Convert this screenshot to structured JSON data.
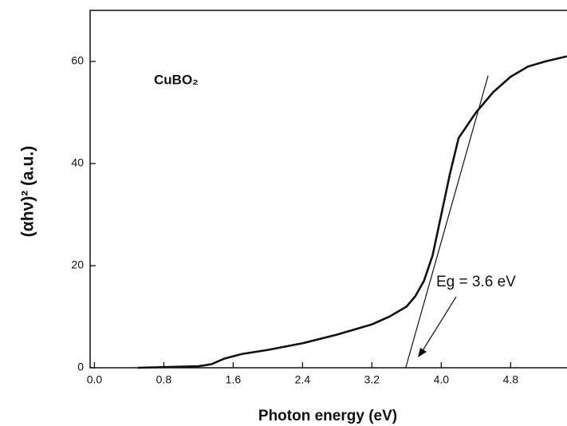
{
  "chart_data": {
    "type": "line",
    "x_label": "Photon energy (eV)",
    "y_label": "(αhν)² (a.u.)",
    "annotations": [
      "CuBO₂",
      "Eg = 3.6 eV"
    ],
    "xlim": [
      -0.05,
      5.45
    ],
    "ylim": [
      0,
      70
    ],
    "xticks": [
      {
        "value": 0,
        "label": "0.0"
      },
      {
        "value": 0.8,
        "label": "0.8"
      },
      {
        "value": 1.6,
        "label": "1.6"
      },
      {
        "value": 2.4,
        "label": "2.4"
      },
      {
        "value": 3.2,
        "label": "3.2"
      },
      {
        "value": 4,
        "label": "4.0"
      },
      {
        "value": 4.8,
        "label": "4.8"
      }
    ],
    "yticks": [
      0,
      20,
      40,
      60
    ],
    "series": [
      {
        "color": "#111111",
        "x": [
          0.5,
          1.2,
          1.35,
          1.5,
          1.7,
          2.0,
          2.4,
          2.8,
          3.2,
          3.4,
          3.6,
          3.7,
          3.8,
          3.9,
          4.0,
          4.1,
          4.2,
          4.4,
          4.6,
          4.8,
          5.0,
          5.2,
          5.45
        ],
        "values": [
          0,
          0.3,
          0.7,
          1.8,
          2.7,
          3.5,
          4.8,
          6.5,
          8.5,
          10,
          12,
          14,
          17,
          22,
          30,
          38,
          45,
          50,
          54,
          57,
          59,
          60,
          61
        ]
      },
      {
        "color": "#111111",
        "x": [
          3.59,
          4.54
        ],
        "values": [
          0,
          57.2
        ]
      }
    ]
  }
}
